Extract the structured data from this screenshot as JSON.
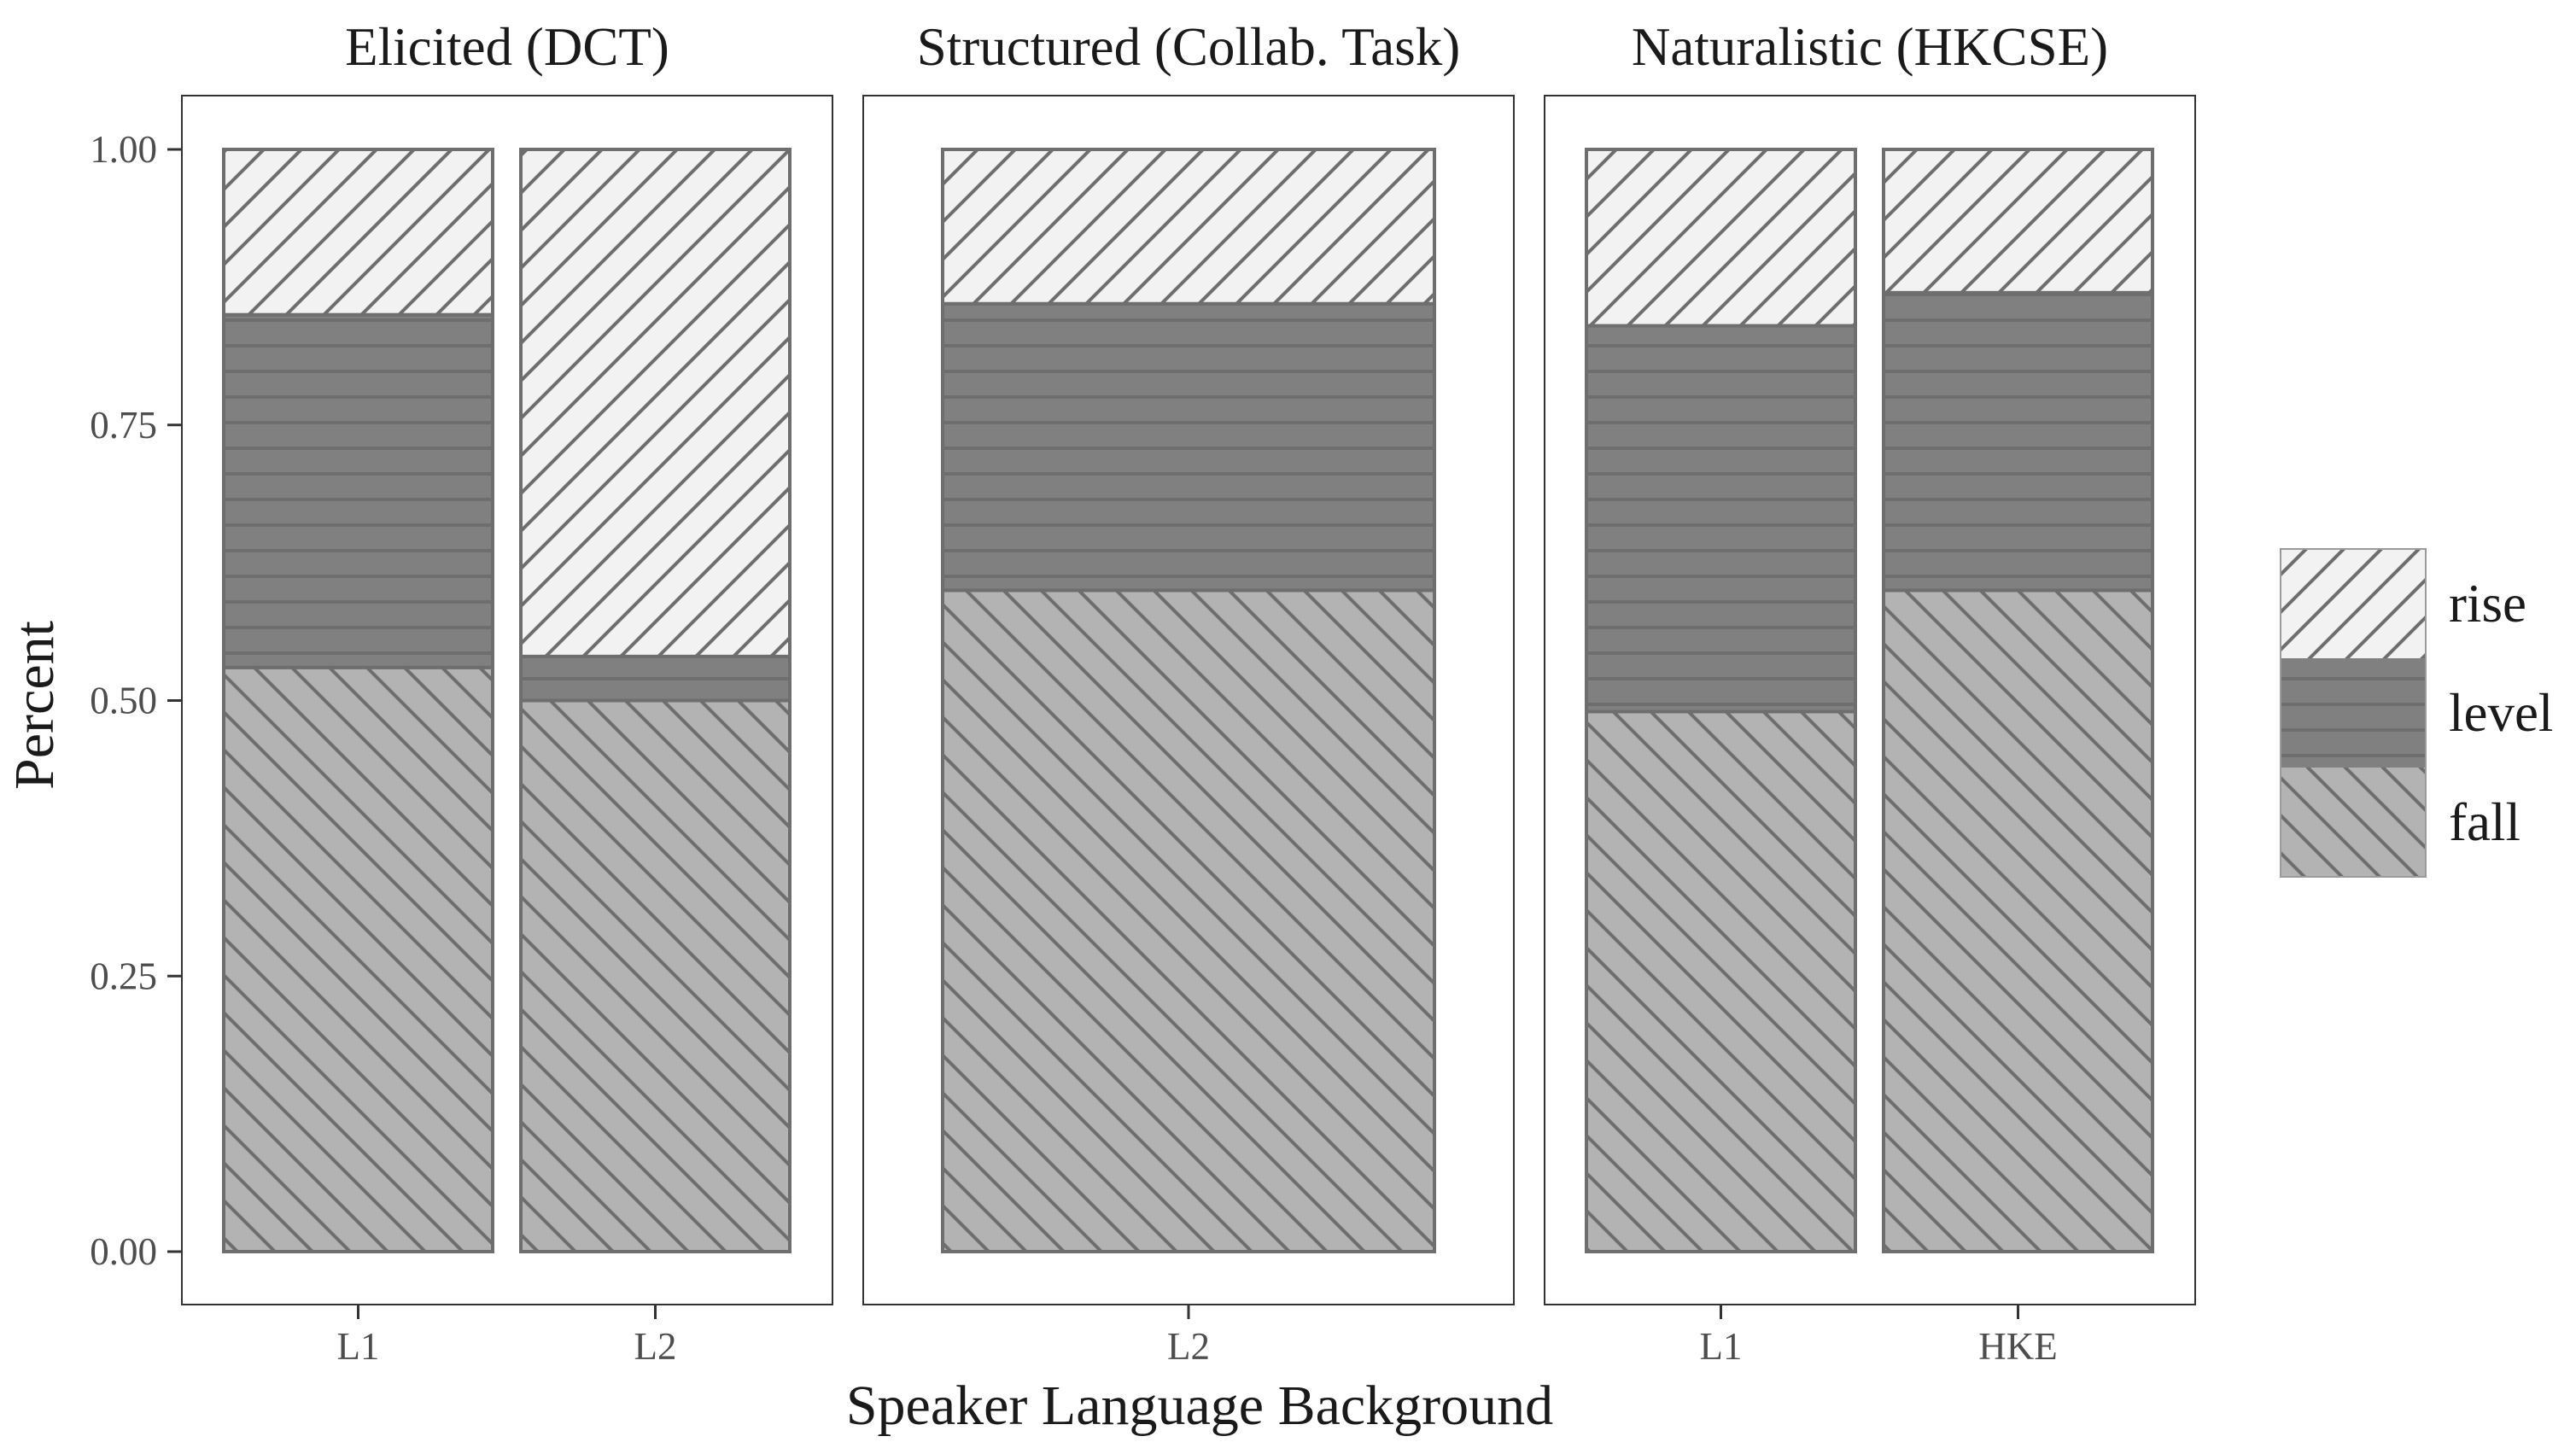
{
  "chart_data": {
    "type": "bar",
    "stacked": true,
    "ylabel": "Percent",
    "xlabel": "Speaker Language Background",
    "ylim": [
      0,
      1
    ],
    "yticks": [
      "0.00",
      "0.25",
      "0.50",
      "0.75",
      "1.00"
    ],
    "legend": {
      "position": "right",
      "items": [
        {
          "label": "rise",
          "fill": "#f2f2f2",
          "pattern": "diagonal-up"
        },
        {
          "label": "level",
          "fill": "#808080",
          "pattern": "horizontal"
        },
        {
          "label": "fall",
          "fill": "#b3b3b3",
          "pattern": "diagonal-down"
        }
      ]
    },
    "facets": [
      {
        "title": "Elicited (DCT)",
        "categories": [
          "L1",
          "L2"
        ],
        "series": [
          {
            "name": "fall",
            "values": [
              0.53,
              0.5
            ]
          },
          {
            "name": "level",
            "values": [
              0.32,
              0.04
            ]
          },
          {
            "name": "rise",
            "values": [
              0.15,
              0.46
            ]
          }
        ]
      },
      {
        "title": "Structured (Collab. Task)",
        "categories": [
          "L2"
        ],
        "series": [
          {
            "name": "fall",
            "values": [
              0.6
            ]
          },
          {
            "name": "level",
            "values": [
              0.26
            ]
          },
          {
            "name": "rise",
            "values": [
              0.14
            ]
          }
        ]
      },
      {
        "title": "Naturalistic (HKCSE)",
        "categories": [
          "L1",
          "HKE"
        ],
        "series": [
          {
            "name": "fall",
            "values": [
              0.49,
              0.6
            ]
          },
          {
            "name": "level",
            "values": [
              0.35,
              0.27
            ]
          },
          {
            "name": "rise",
            "values": [
              0.16,
              0.13
            ]
          }
        ]
      }
    ],
    "colors": {
      "panel_border": "#333333",
      "bar_stroke": "#6e6e6e",
      "hatch": "#6e6e6e",
      "tick": "#333333"
    }
  }
}
